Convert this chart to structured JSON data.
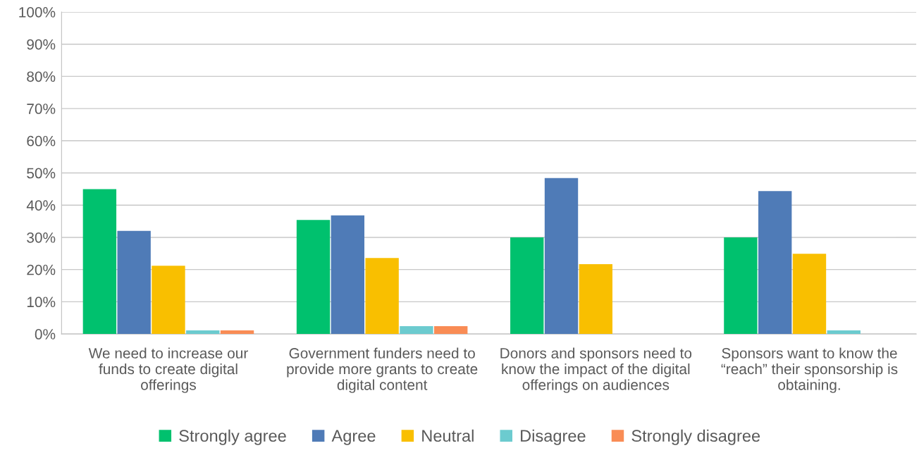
{
  "chart_data": {
    "type": "bar",
    "categories": [
      "We need to increase our\nfunds to create digital\nofferings",
      "Government funders need to\nprovide more grants to create\ndigital content",
      "Donors and sponsors need to\nknow the impact of the digital\nofferings on audiences",
      "Sponsors want to know the\n“reach” their sponsorship is\nobtaining."
    ],
    "series": [
      {
        "name": "Strongly agree",
        "color": "#00c16e",
        "values": [
          45,
          35.4,
          30,
          30
        ]
      },
      {
        "name": "Agree",
        "color": "#4f7bb7",
        "values": [
          32,
          36.8,
          48.4,
          44.4
        ]
      },
      {
        "name": "Neutral",
        "color": "#f9bf00",
        "values": [
          21.2,
          23.6,
          21.7,
          24.9
        ]
      },
      {
        "name": "Disagree",
        "color": "#6ccbcf",
        "values": [
          1.1,
          2.4,
          0,
          1.1
        ]
      },
      {
        "name": "Strongly disagree",
        "color": "#f98c55",
        "values": [
          1.1,
          2.4,
          0,
          0
        ]
      }
    ],
    "ylim": [
      0,
      100
    ],
    "yticks": [
      {
        "value": 0,
        "label": "0%"
      },
      {
        "value": 10,
        "label": "10%"
      },
      {
        "value": 20,
        "label": "20%"
      },
      {
        "value": 30,
        "label": "30%"
      },
      {
        "value": 40,
        "label": "40%"
      },
      {
        "value": 50,
        "label": "50%"
      },
      {
        "value": 60,
        "label": "60%"
      },
      {
        "value": 70,
        "label": "70%"
      },
      {
        "value": 80,
        "label": "80%"
      },
      {
        "value": 90,
        "label": "90%"
      },
      {
        "value": 100,
        "label": "100%"
      }
    ],
    "grid": "y",
    "legend": "bottom"
  }
}
